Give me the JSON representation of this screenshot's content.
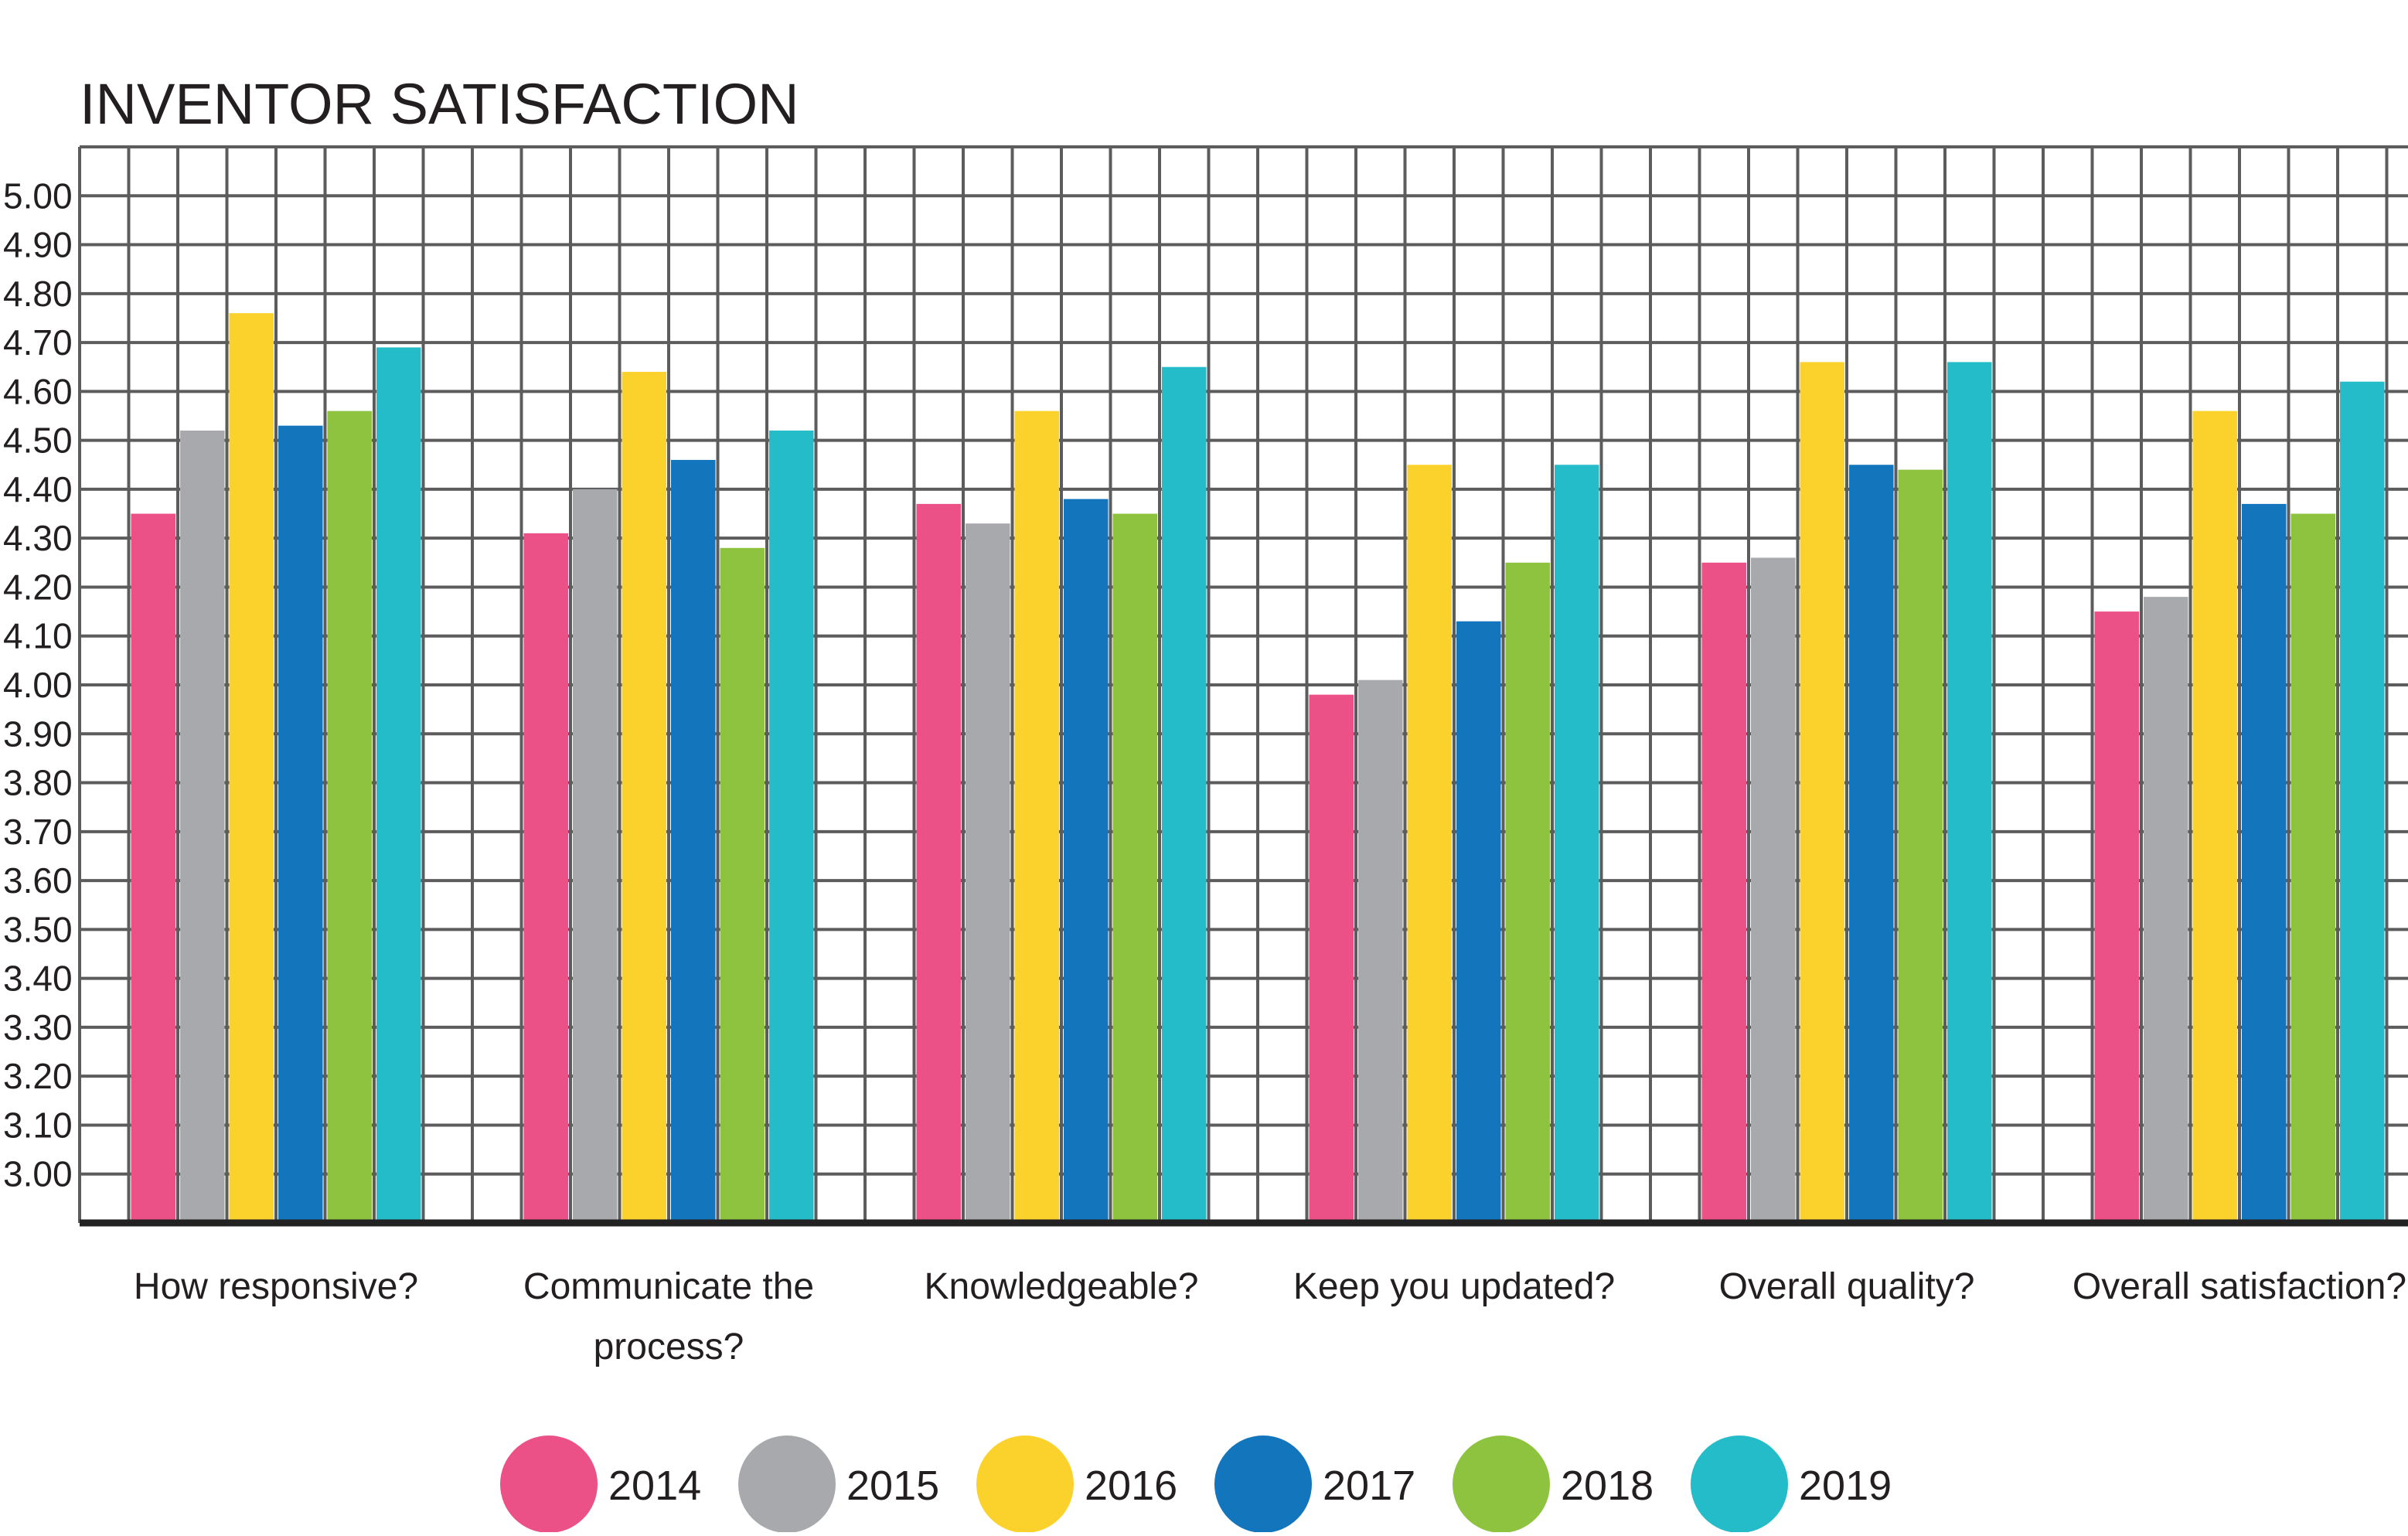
{
  "chart_data": {
    "type": "bar",
    "title": "INVENTOR SATISFACTION",
    "xlabel": "",
    "ylabel": "",
    "categories": [
      "How responsive?",
      "Communicate the process?",
      "Knowledgeable?",
      "Keep you updated?",
      "Overall quality?",
      "Overall satisfaction?"
    ],
    "category_label_lines": [
      [
        "How responsive?"
      ],
      [
        "Communicate the",
        "process?"
      ],
      [
        "Knowledgeable?"
      ],
      [
        "Keep you updated?"
      ],
      [
        "Overall quality?"
      ],
      [
        "Overall satisfaction?"
      ]
    ],
    "series": [
      {
        "name": "2014",
        "color": "#EB5087",
        "values": [
          4.35,
          4.31,
          4.37,
          3.98,
          4.25,
          4.15
        ]
      },
      {
        "name": "2015",
        "color": "#A7A9AC",
        "values": [
          4.52,
          4.4,
          4.33,
          4.01,
          4.26,
          4.18
        ]
      },
      {
        "name": "2016",
        "color": "#FBD22B",
        "values": [
          4.76,
          4.64,
          4.56,
          4.45,
          4.66,
          4.56
        ]
      },
      {
        "name": "2017",
        "color": "#1375BC",
        "values": [
          4.53,
          4.46,
          4.38,
          4.13,
          4.45,
          4.37
        ]
      },
      {
        "name": "2018",
        "color": "#8DC33F",
        "values": [
          4.56,
          4.28,
          4.35,
          4.25,
          4.44,
          4.35
        ]
      },
      {
        "name": "2019",
        "color": "#24BCC9",
        "values": [
          4.69,
          4.52,
          4.65,
          4.45,
          4.66,
          4.62
        ]
      }
    ],
    "yticks": [
      "5.00",
      "4.90",
      "4.80",
      "4.70",
      "4.60",
      "4.50",
      "4.40",
      "4.30",
      "4.20",
      "4.10",
      "4.00",
      "3.90",
      "3.80",
      "3.70",
      "3.60",
      "3.50",
      "3.40",
      "3.30",
      "3.20",
      "3.10",
      "3.00"
    ],
    "ylim": [
      2.9,
      5.1
    ],
    "grid": true,
    "legend_position": "bottom",
    "colors": {
      "grid": "#5C5C5C",
      "axis": "#222222",
      "text": "#231F20"
    }
  }
}
